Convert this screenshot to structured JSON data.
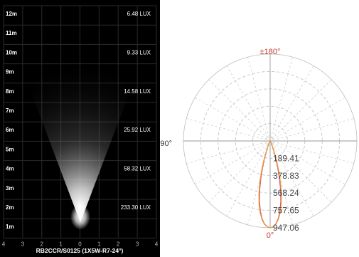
{
  "chart_data": [
    {
      "type": "heatmap",
      "title": "",
      "caption": "RB2CCR/S0125 (1X5W-R7-24°)",
      "y_tick_labels": [
        "12m",
        "11m",
        "10m",
        "9m",
        "8m",
        "7m",
        "6m",
        "5m",
        "4m",
        "3m",
        "2m",
        "1m"
      ],
      "x_tick_labels": [
        "4",
        "3",
        "2",
        "1",
        "0",
        "1",
        "2",
        "3",
        "4"
      ],
      "lux_readings": [
        {
          "distance_m": 12,
          "label": "6.48 LUX"
        },
        {
          "distance_m": 10,
          "label": "9.33 LUX"
        },
        {
          "distance_m": 8,
          "label": "14.58 LUX"
        },
        {
          "distance_m": 6,
          "label": "25.92 LUX"
        },
        {
          "distance_m": 4,
          "label": "58.32 LUX"
        },
        {
          "distance_m": 2,
          "label": "233.30 LUX"
        }
      ],
      "beam_angle_deg": 24
    },
    {
      "type": "line",
      "title": "",
      "angle_labels": {
        "top": "±180°",
        "left": "-90°",
        "bottom": "0°"
      },
      "radial_labels": [
        "189.41",
        "378.83",
        "568.24",
        "757.65",
        "947.06"
      ],
      "radial_values": [
        189.41,
        378.83,
        568.24,
        757.65,
        947.06
      ],
      "r_max": 947.06,
      "series": [
        {
          "color": "#d94a6a",
          "points": [
            [
              0,
              947
            ],
            [
              2,
              935
            ],
            [
              4,
              905
            ],
            [
              6,
              850
            ],
            [
              8,
              770
            ],
            [
              10,
              670
            ],
            [
              12,
              550
            ],
            [
              14,
              420
            ],
            [
              16,
              300
            ],
            [
              18,
              200
            ],
            [
              20,
              120
            ],
            [
              24,
              55
            ],
            [
              30,
              20
            ],
            [
              40,
              8
            ],
            [
              60,
              3
            ],
            [
              90,
              0
            ]
          ]
        },
        {
          "color": "#e8a23a",
          "points": [
            [
              0,
              947
            ],
            [
              2,
              938
            ],
            [
              4,
              910
            ],
            [
              6,
              860
            ],
            [
              8,
              790
            ],
            [
              10,
              700
            ],
            [
              12,
              590
            ],
            [
              14,
              470
            ],
            [
              16,
              350
            ],
            [
              18,
              240
            ],
            [
              20,
              150
            ],
            [
              24,
              65
            ],
            [
              30,
              25
            ],
            [
              40,
              10
            ],
            [
              60,
              3
            ],
            [
              90,
              0
            ]
          ]
        }
      ]
    }
  ]
}
